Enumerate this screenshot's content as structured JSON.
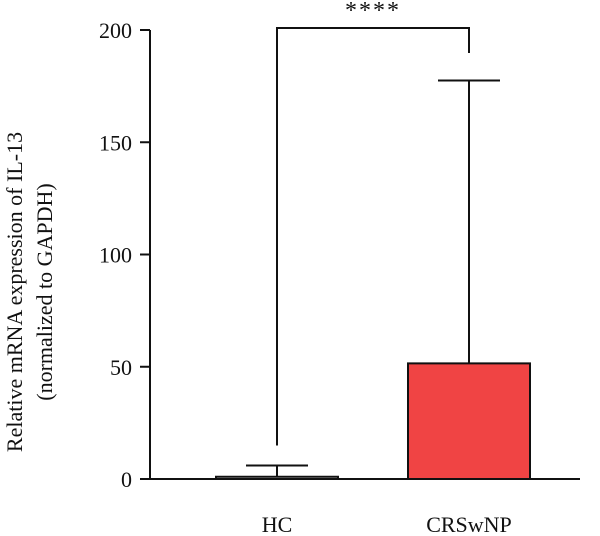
{
  "chart_data": {
    "type": "bar",
    "categories": [
      "HC",
      "CRSwNP"
    ],
    "values": [
      1,
      51.5
    ],
    "error_upper": [
      6,
      177.5
    ],
    "ylabel_line1": "Relative mRNA expression of IL-13",
    "ylabel_line2": "(normalized to GAPDH)",
    "ylim": [
      0,
      200
    ],
    "yticks": [
      "0",
      "50",
      "100",
      "150",
      "200"
    ],
    "significance": "****",
    "bar_colors": [
      "#ffffff",
      "#f04444"
    ],
    "grid": false
  }
}
